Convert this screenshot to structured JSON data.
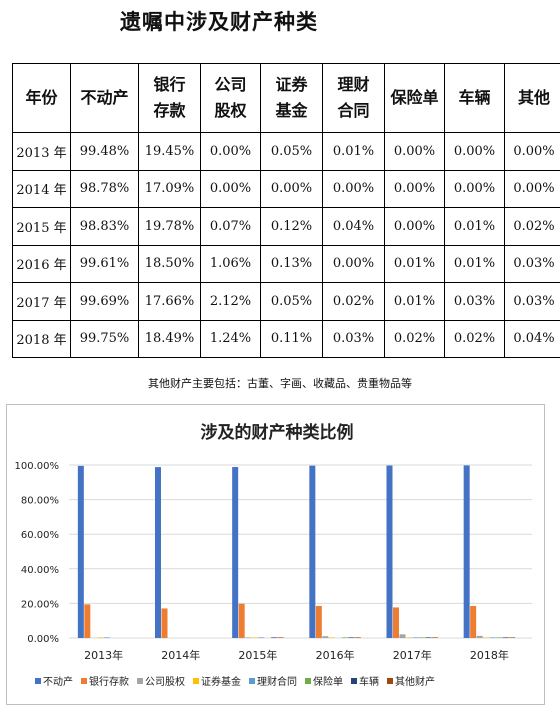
{
  "page_title": "遗嘱中涉及财产种类",
  "table": {
    "headers": [
      "年份",
      "不动产",
      "银行存款",
      "公司股权",
      "证券基金",
      "理财合同",
      "保险单",
      "车辆",
      "其他"
    ],
    "rows": [
      [
        "2013 年",
        "99.48%",
        "19.45%",
        "0.00%",
        "0.05%",
        "0.01%",
        "0.00%",
        "0.00%",
        "0.00%"
      ],
      [
        "2014 年",
        "98.78%",
        "17.09%",
        "0.00%",
        "0.00%",
        "0.00%",
        "0.00%",
        "0.00%",
        "0.00%"
      ],
      [
        "2015 年",
        "98.83%",
        "19.78%",
        "0.07%",
        "0.12%",
        "0.04%",
        "0.00%",
        "0.01%",
        "0.02%"
      ],
      [
        "2016 年",
        "99.61%",
        "18.50%",
        "1.06%",
        "0.13%",
        "0.00%",
        "0.01%",
        "0.01%",
        "0.03%"
      ],
      [
        "2017 年",
        "99.69%",
        "17.66%",
        "2.12%",
        "0.05%",
        "0.02%",
        "0.01%",
        "0.03%",
        "0.03%"
      ],
      [
        "2018 年",
        "99.75%",
        "18.49%",
        "1.24%",
        "0.11%",
        "0.03%",
        "0.02%",
        "0.02%",
        "0.04%"
      ]
    ]
  },
  "note": "其他财产主要包括：古董、字画、收藏品、贵重物品等",
  "chart_data": {
    "type": "bar",
    "title": "涉及的财产种类比例",
    "categories": [
      "2013年",
      "2014年",
      "2015年",
      "2016年",
      "2017年",
      "2018年"
    ],
    "ylim": [
      0,
      100
    ],
    "yticks": [
      "0.00%",
      "20.00%",
      "40.00%",
      "60.00%",
      "80.00%",
      "100.00%"
    ],
    "grid": true,
    "legend_position": "bottom",
    "series": [
      {
        "name": "不动产",
        "color": "#4472c4",
        "values": [
          99.48,
          98.78,
          98.83,
          99.61,
          99.69,
          99.75
        ]
      },
      {
        "name": "银行存款",
        "color": "#ed7d31",
        "values": [
          19.45,
          17.09,
          19.78,
          18.5,
          17.66,
          18.49
        ]
      },
      {
        "name": "公司股权",
        "color": "#a5a5a5",
        "values": [
          0.0,
          0.0,
          0.07,
          1.06,
          2.12,
          1.24
        ]
      },
      {
        "name": "证券基金",
        "color": "#ffc000",
        "values": [
          0.05,
          0.0,
          0.12,
          0.13,
          0.05,
          0.11
        ]
      },
      {
        "name": "理财合同",
        "color": "#5b9bd5",
        "values": [
          0.01,
          0.0,
          0.04,
          0.0,
          0.02,
          0.03
        ]
      },
      {
        "name": "保险单",
        "color": "#70ad47",
        "values": [
          0.0,
          0.0,
          0.0,
          0.01,
          0.01,
          0.02
        ]
      },
      {
        "name": "车辆",
        "color": "#264478",
        "values": [
          0.0,
          0.0,
          0.01,
          0.01,
          0.03,
          0.02
        ]
      },
      {
        "name": "其他财产",
        "color": "#9e480e",
        "values": [
          0.0,
          0.0,
          0.02,
          0.03,
          0.03,
          0.04
        ]
      }
    ]
  }
}
